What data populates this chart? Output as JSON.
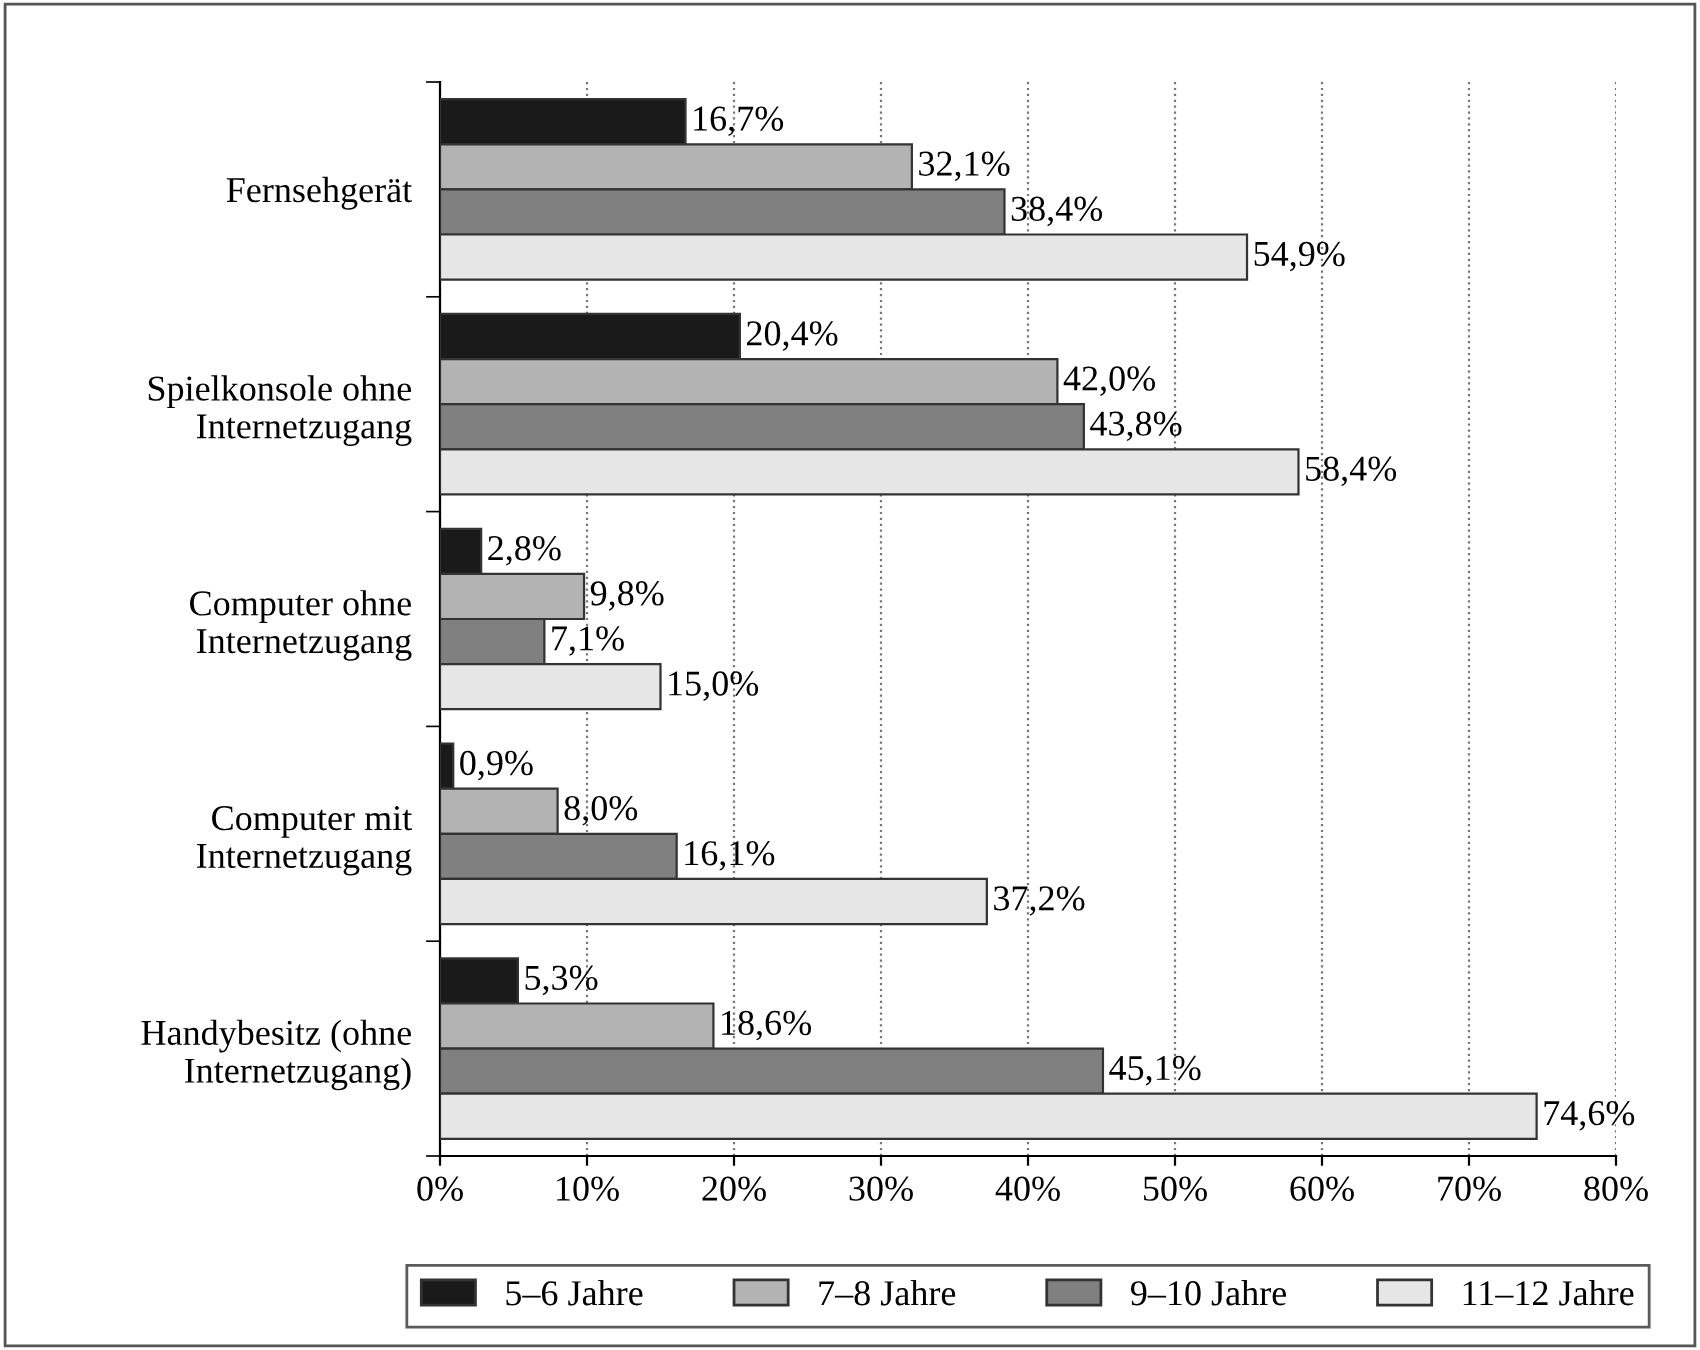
{
  "chart_data": {
    "type": "bar",
    "orientation": "horizontal",
    "categories": [
      "Fernsehgerät",
      "Spielkonsole ohne\nInternetzugang",
      "Computer ohne\nInternetzugang",
      "Computer mit\nInternetzugang",
      "Handybesitz (ohne\nInternetzugang)"
    ],
    "series": [
      {
        "name": "5–6 Jahre",
        "color": "#1a1a1a",
        "values": [
          16.7,
          20.4,
          2.8,
          0.9,
          5.3
        ],
        "value_labels": [
          "16,7%",
          "20,4%",
          "2,8%",
          "0,9%",
          "5,3%"
        ]
      },
      {
        "name": "7–8 Jahre",
        "color": "#b3b3b3",
        "values": [
          32.1,
          42.0,
          9.8,
          8.0,
          18.6
        ],
        "value_labels": [
          "32,1%",
          "42,0%",
          "9,8%",
          "8,0%",
          "18,6%"
        ]
      },
      {
        "name": "9–10 Jahre",
        "color": "#808080",
        "values": [
          38.4,
          43.8,
          7.1,
          16.1,
          45.1
        ],
        "value_labels": [
          "38,4%",
          "43,8%",
          "7,1%",
          "16,1%",
          "45,1%"
        ]
      },
      {
        "name": "11–12 Jahre",
        "color": "#e6e6e6",
        "values": [
          54.9,
          58.4,
          15.0,
          37.2,
          74.6
        ],
        "value_labels": [
          "54,9%",
          "58,4%",
          "15,0%",
          "37,2%",
          "74,6%"
        ]
      }
    ],
    "xlim": [
      0,
      80
    ],
    "xticks": [
      {
        "value": 0,
        "label": "0%"
      },
      {
        "value": 10,
        "label": "10%"
      },
      {
        "value": 20,
        "label": "20%"
      },
      {
        "value": 30,
        "label": "30%"
      },
      {
        "value": 40,
        "label": "40%"
      },
      {
        "value": 50,
        "label": "50%"
      },
      {
        "value": 60,
        "label": "60%"
      },
      {
        "value": 70,
        "label": "70%"
      },
      {
        "value": 80,
        "label": "80%"
      }
    ],
    "grid": "x",
    "legend": "bottom"
  }
}
